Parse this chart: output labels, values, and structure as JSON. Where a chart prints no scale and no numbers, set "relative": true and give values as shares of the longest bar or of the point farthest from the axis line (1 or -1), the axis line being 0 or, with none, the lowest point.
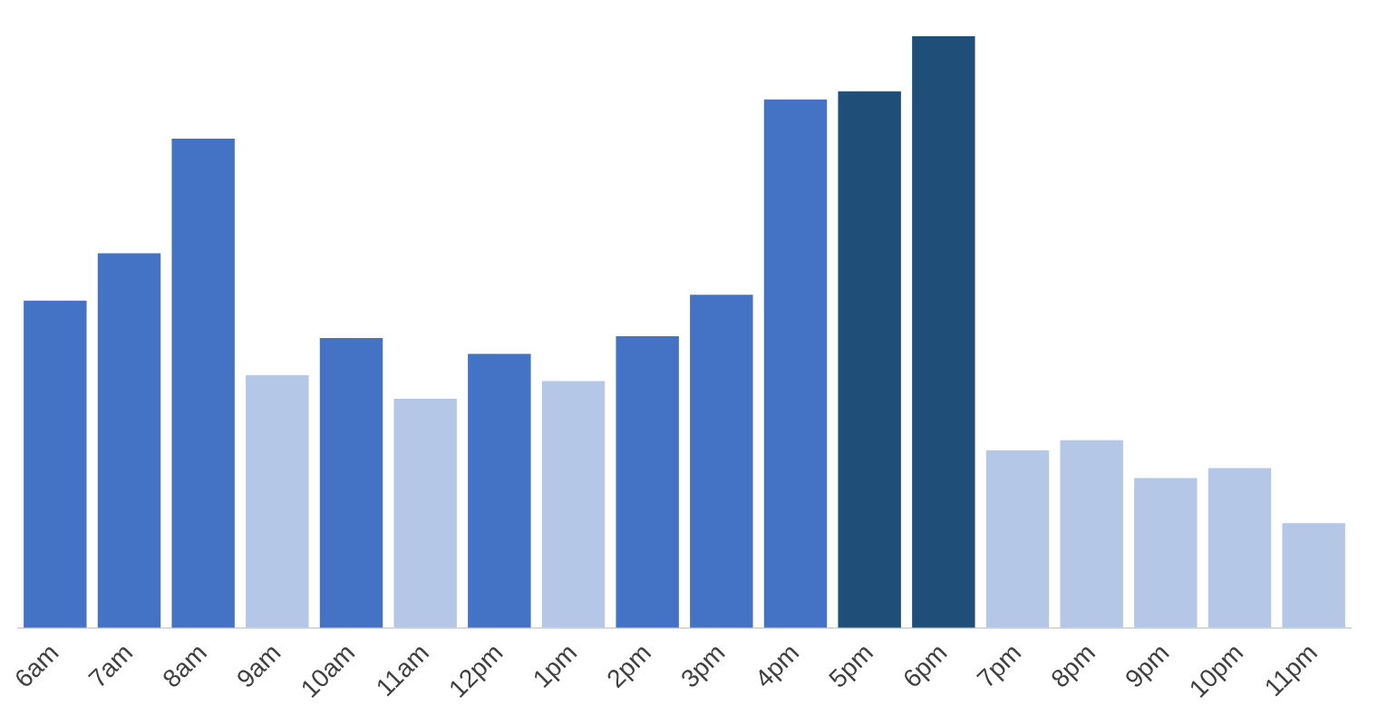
{
  "chart_data": {
    "type": "bar",
    "relative": true,
    "categories": [
      "6am",
      "7am",
      "8am",
      "9am",
      "10am",
      "11am",
      "12pm",
      "1pm",
      "2pm",
      "3pm",
      "4pm",
      "5pm",
      "6pm",
      "7pm",
      "8pm",
      "9pm",
      "10pm",
      "11pm"
    ],
    "values": [
      0.553,
      0.633,
      0.827,
      0.427,
      0.49,
      0.387,
      0.463,
      0.417,
      0.493,
      0.563,
      0.893,
      0.907,
      1,
      0.3,
      0.317,
      0.253,
      0.27,
      0.177
    ],
    "colors": [
      "#4472c4",
      "#4472c4",
      "#4472c4",
      "#b4c7e7",
      "#4472c4",
      "#b4c7e7",
      "#4472c4",
      "#b4c7e7",
      "#4472c4",
      "#4472c4",
      "#4472c4",
      "#1f4e79",
      "#1f4e79",
      "#b4c7e7",
      "#b4c7e7",
      "#b4c7e7",
      "#b4c7e7",
      "#b4c7e7"
    ],
    "grid": false,
    "legend": false
  }
}
